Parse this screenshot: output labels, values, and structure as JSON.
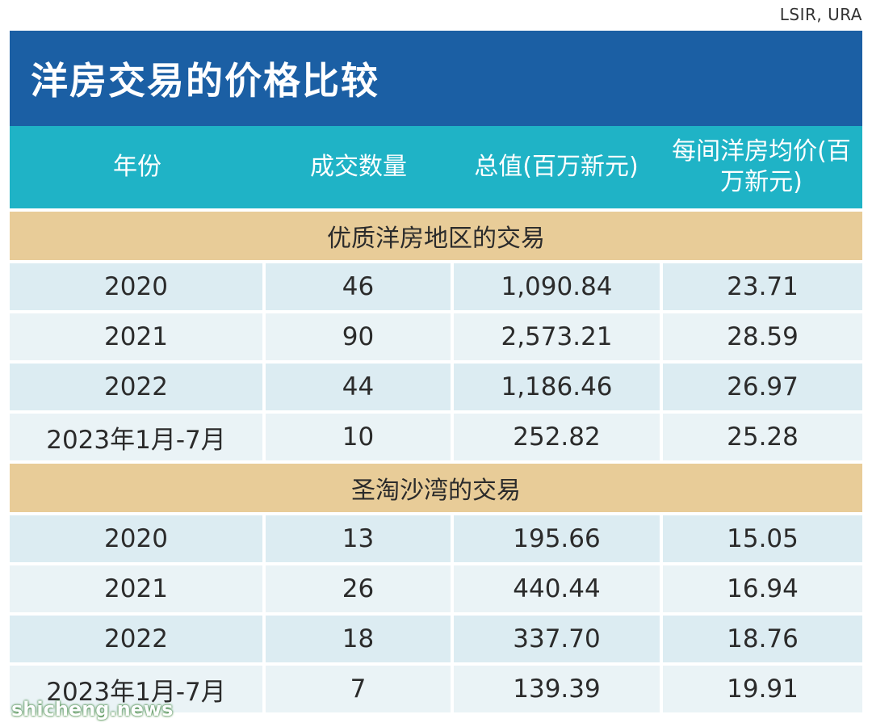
{
  "source": "LSIR, URA",
  "title": "洋房交易的价格比较",
  "headers": [
    "年份",
    "成交数量",
    "总值(百万新元)",
    "每间洋房均价(百万新元)"
  ],
  "sections": [
    {
      "label": "优质洋房地区的交易",
      "rows": [
        [
          "2020",
          "46",
          "1,090.84",
          "23.71"
        ],
        [
          "2021",
          "90",
          "2,573.21",
          "28.59"
        ],
        [
          "2022",
          "44",
          "1,186.46",
          "26.97"
        ],
        [
          "2023年1月-7月",
          "10",
          "252.82",
          "25.28"
        ]
      ]
    },
    {
      "label": "圣淘沙湾的交易",
      "rows": [
        [
          "2020",
          "13",
          "195.66",
          "15.05"
        ],
        [
          "2021",
          "26",
          "440.44",
          "16.94"
        ],
        [
          "2022",
          "18",
          "337.70",
          "18.76"
        ],
        [
          "2023年1月-7月",
          "7",
          "139.39",
          "19.91"
        ]
      ]
    }
  ],
  "watermark": "shicheng.news",
  "colors": {
    "title_bg": "#1b5fa4",
    "header_bg": "#1fb3c6",
    "section_bg": "#e8cc98",
    "row_a": "#dcecf2",
    "row_b": "#eaf3f6"
  }
}
